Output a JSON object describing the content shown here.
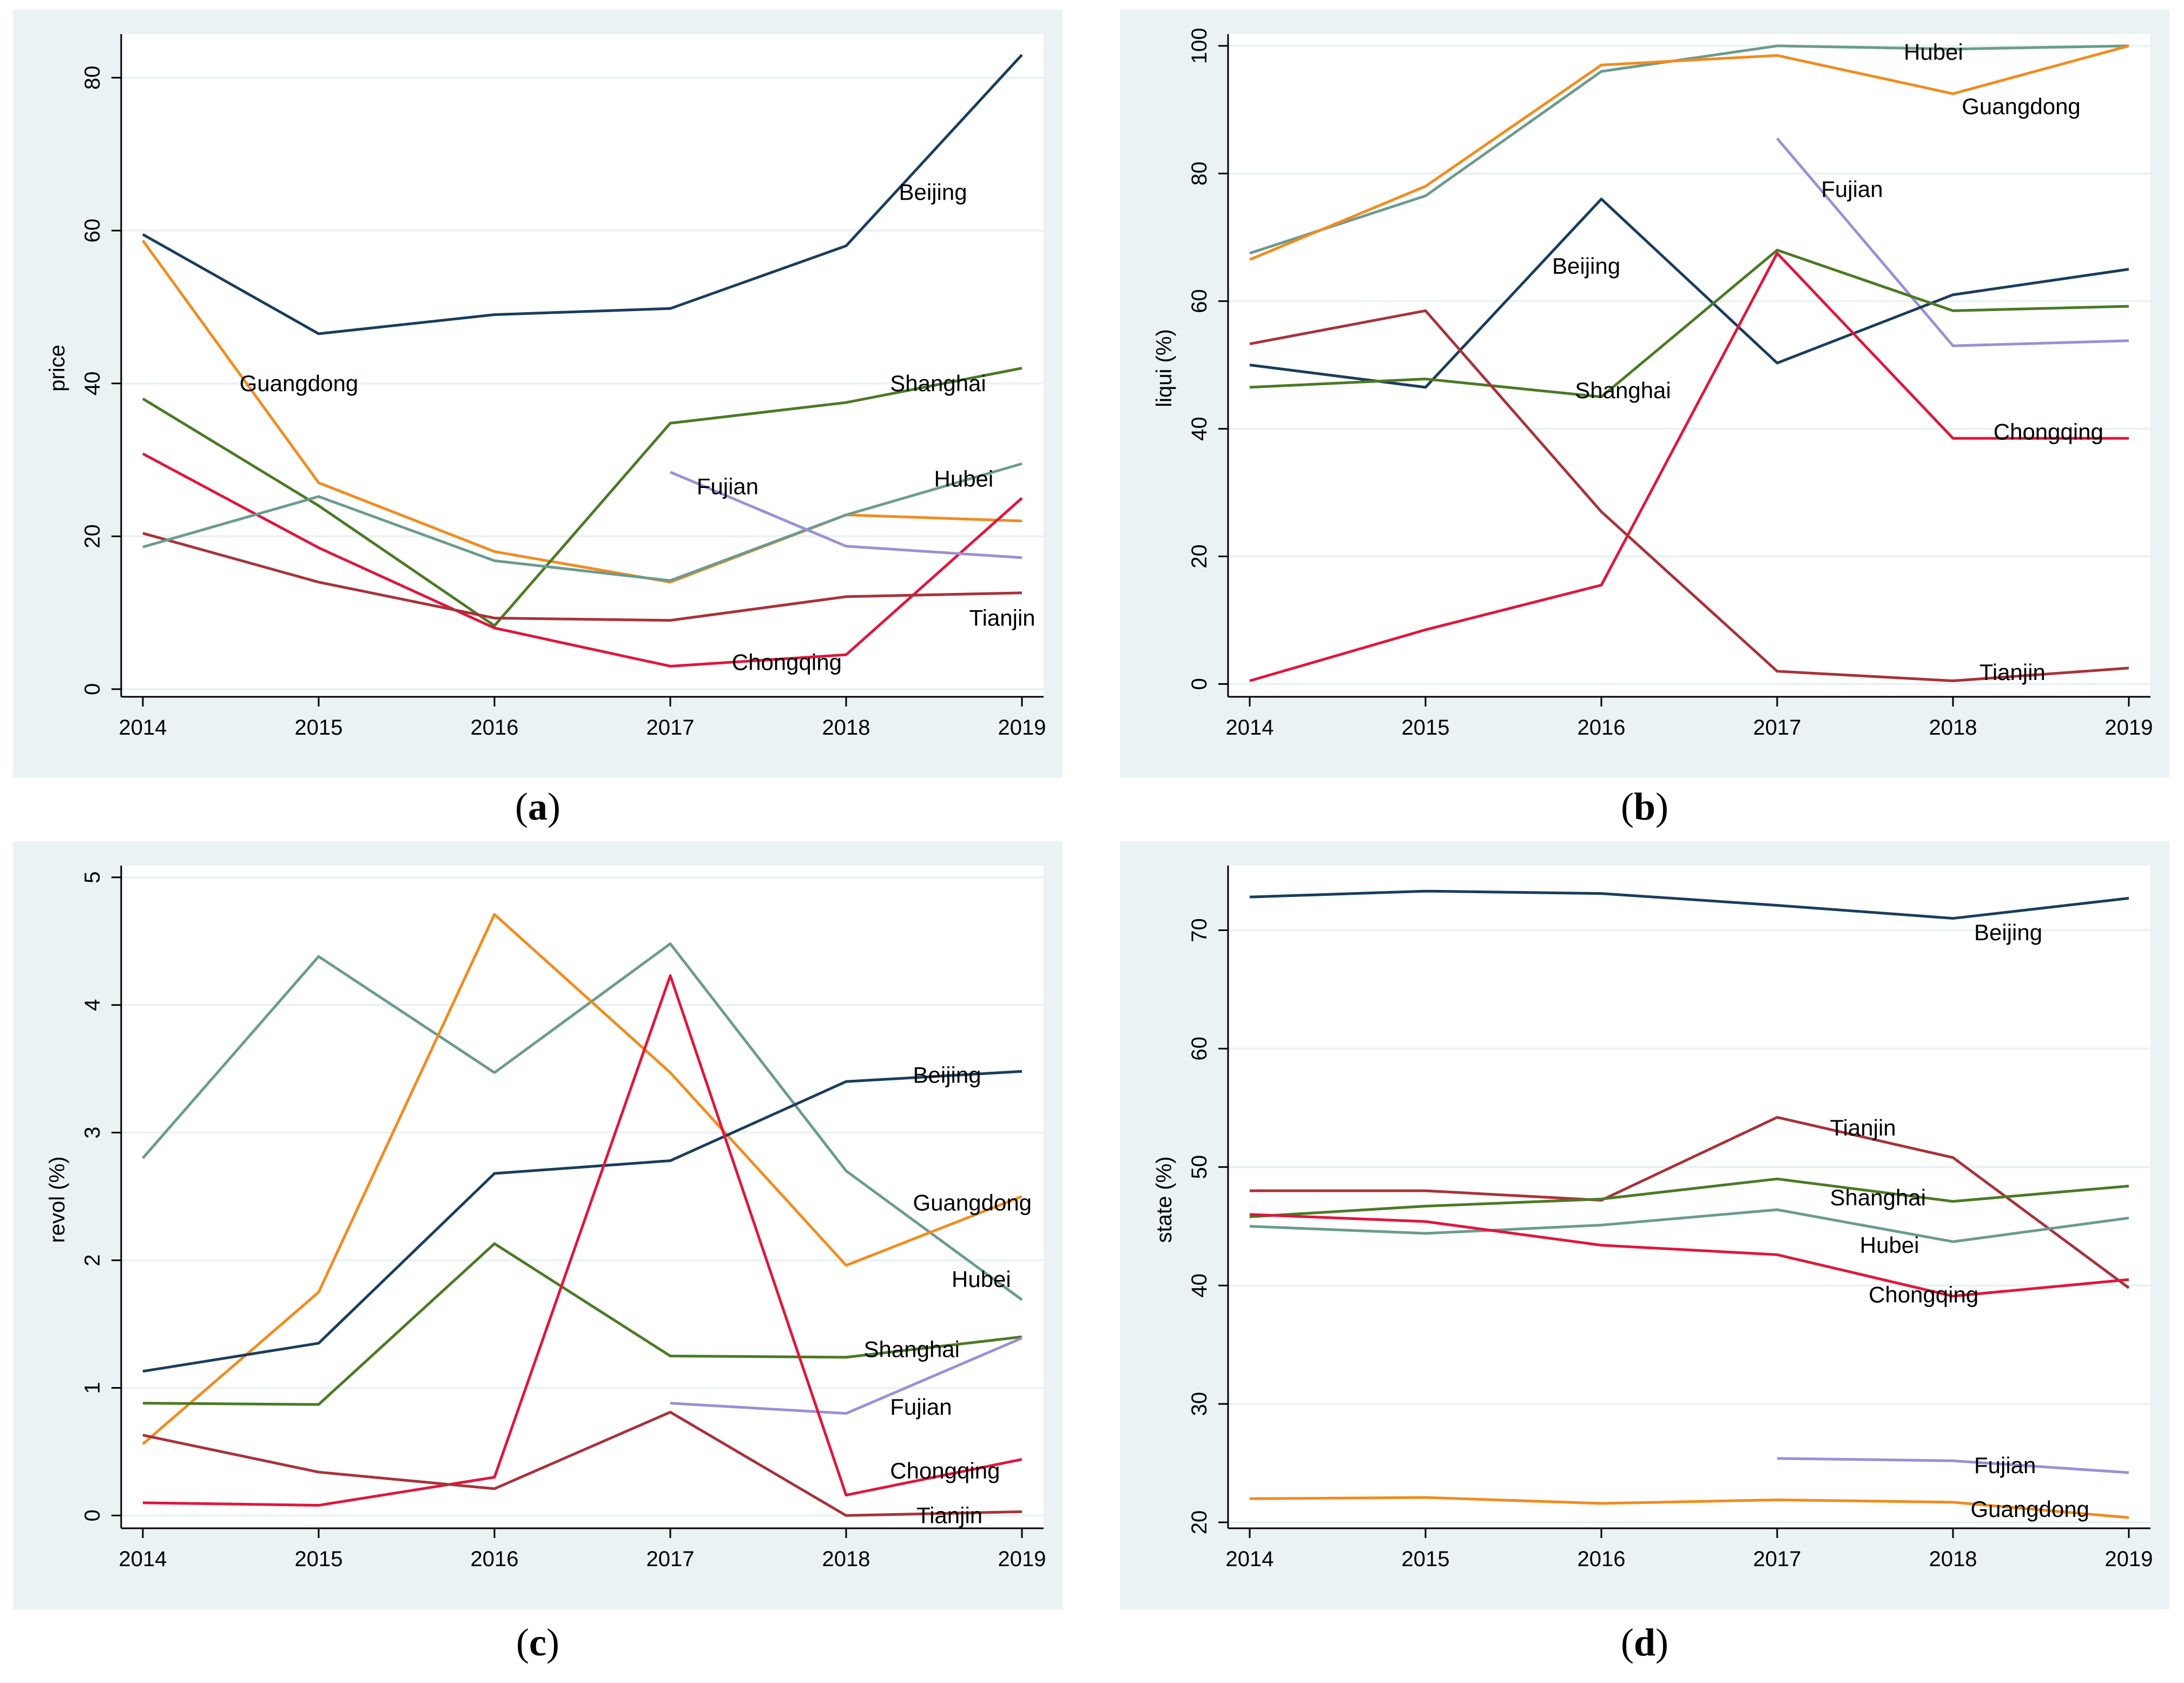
{
  "chart_data": [
    {
      "id": "a",
      "type": "line",
      "caption_letter": "a",
      "ylabel": "price",
      "xlabel": "",
      "x": [
        2014,
        2015,
        2016,
        2017,
        2018,
        2019
      ],
      "ylim": [
        -1,
        85
      ],
      "yticks": [
        0,
        20,
        40,
        60,
        80
      ],
      "grid": true,
      "series": [
        {
          "name": "Beijing",
          "color": "#1a3d5c",
          "values": [
            59.5,
            46.5,
            49,
            49.8,
            58,
            83
          ]
        },
        {
          "name": "Guangdong",
          "color": "#f28b1e",
          "values": [
            58.7,
            27,
            18,
            14,
            22.8,
            22
          ]
        },
        {
          "name": "Shanghai",
          "color": "#4b7a25",
          "values": [
            38,
            24,
            8.3,
            34.8,
            37.5,
            42
          ]
        },
        {
          "name": "Chongqing",
          "color": "#e0163c",
          "values": [
            30.8,
            18.5,
            8,
            3,
            4.5,
            25
          ]
        },
        {
          "name": "Tianjin",
          "color": "#a8323a",
          "values": [
            20.4,
            14,
            9.3,
            9,
            12.1,
            12.6
          ]
        },
        {
          "name": "Hubei",
          "color": "#6b9b8f",
          "values": [
            18.6,
            25.2,
            16.8,
            14.2,
            22.8,
            29.5
          ]
        },
        {
          "name": "Fujian",
          "color": "#9c8fd6",
          "values": [
            null,
            null,
            null,
            28.4,
            18.7,
            17.2
          ]
        }
      ],
      "labels": [
        {
          "text": "Beijing",
          "x": 2018.3,
          "y": 65
        },
        {
          "text": "Guangdong",
          "x": 2014.55,
          "y": 40
        },
        {
          "text": "Shanghai",
          "x": 2018.25,
          "y": 40
        },
        {
          "text": "Fujian",
          "x": 2017.15,
          "y": 26.5
        },
        {
          "text": "Hubei",
          "x": 2018.5,
          "y": 27.5
        },
        {
          "text": "Tianjin",
          "x": 2018.7,
          "y": 9.3
        },
        {
          "text": "Chongqing",
          "x": 2017.35,
          "y": 3.5
        }
      ]
    },
    {
      "id": "b",
      "type": "line",
      "caption_letter": "b",
      "ylabel": "liqui (%)",
      "xlabel": "",
      "x": [
        2014,
        2015,
        2016,
        2017,
        2018,
        2019
      ],
      "ylim": [
        -2,
        101
      ],
      "yticks": [
        0,
        20,
        40,
        60,
        80,
        100
      ],
      "grid": true,
      "series": [
        {
          "name": "Hubei",
          "color": "#6b9b8f",
          "values": [
            67.5,
            76.5,
            96,
            100,
            99.5,
            100
          ]
        },
        {
          "name": "Guangdong",
          "color": "#f28b1e",
          "values": [
            66.5,
            78,
            97,
            98.5,
            92.5,
            100
          ]
        },
        {
          "name": "Fujian",
          "color": "#9c8fd6",
          "values": [
            null,
            null,
            null,
            85.5,
            53,
            53.8
          ]
        },
        {
          "name": "Beijing",
          "color": "#1a3d5c",
          "values": [
            50,
            46.5,
            76,
            50.3,
            61,
            65
          ]
        },
        {
          "name": "Shanghai",
          "color": "#4b7a25",
          "values": [
            46.5,
            47.8,
            45,
            68,
            58.5,
            59.2
          ]
        },
        {
          "name": "Chongqing",
          "color": "#e0163c",
          "values": [
            0.5,
            8.5,
            15.5,
            67.5,
            38.5,
            38.5
          ]
        },
        {
          "name": "Tianjin",
          "color": "#a8323a",
          "values": [
            53.3,
            58.5,
            27,
            2,
            0.5,
            2.5
          ]
        }
      ],
      "labels": [
        {
          "text": "Hubei",
          "x": 2017.72,
          "y": 99
        },
        {
          "text": "Guangdong",
          "x": 2018.05,
          "y": 90.5
        },
        {
          "text": "Fujian",
          "x": 2017.25,
          "y": 77.5
        },
        {
          "text": "Beijing",
          "x": 2015.72,
          "y": 65.5
        },
        {
          "text": "Shanghai",
          "x": 2015.85,
          "y": 46
        },
        {
          "text": "Chongqing",
          "x": 2018.23,
          "y": 39.5
        },
        {
          "text": "Tianjin",
          "x": 2018.15,
          "y": 1.8
        }
      ]
    },
    {
      "id": "c",
      "type": "line",
      "caption_letter": "c",
      "ylabel": "revol (%)",
      "xlabel": "",
      "x": [
        2014,
        2015,
        2016,
        2017,
        2018,
        2019
      ],
      "ylim": [
        -0.1,
        5.05
      ],
      "yticks": [
        0,
        1,
        2,
        3,
        4,
        5
      ],
      "grid": true,
      "series": [
        {
          "name": "Hubei",
          "color": "#6b9b8f",
          "values": [
            2.8,
            4.38,
            3.47,
            4.48,
            2.7,
            1.69
          ]
        },
        {
          "name": "Guangdong",
          "color": "#f28b1e",
          "values": [
            0.56,
            1.75,
            4.71,
            3.47,
            1.96,
            2.5
          ]
        },
        {
          "name": "Beijing",
          "color": "#1a3d5c",
          "values": [
            1.13,
            1.35,
            2.68,
            2.78,
            3.4,
            3.48
          ]
        },
        {
          "name": "Shanghai",
          "color": "#4b7a25",
          "values": [
            0.88,
            0.87,
            2.13,
            1.25,
            1.24,
            1.4
          ]
        },
        {
          "name": "Fujian",
          "color": "#9c8fd6",
          "values": [
            null,
            null,
            null,
            0.88,
            0.8,
            1.39
          ]
        },
        {
          "name": "Chongqing",
          "color": "#e0163c",
          "values": [
            0.1,
            0.08,
            0.3,
            4.23,
            0.16,
            0.44
          ]
        },
        {
          "name": "Tianjin",
          "color": "#a8323a",
          "values": [
            0.63,
            0.34,
            0.21,
            0.81,
            0,
            0.03
          ]
        }
      ],
      "labels": [
        {
          "text": "Beijing",
          "x": 2018.38,
          "y": 3.45
        },
        {
          "text": "Guangdong",
          "x": 2018.38,
          "y": 2.45
        },
        {
          "text": "Hubei",
          "x": 2018.6,
          "y": 1.85
        },
        {
          "text": "Shanghai",
          "x": 2018.1,
          "y": 1.3
        },
        {
          "text": "Fujian",
          "x": 2018.25,
          "y": 0.85
        },
        {
          "text": "Chongqing",
          "x": 2018.25,
          "y": 0.35
        },
        {
          "text": "Tianjin",
          "x": 2018.4,
          "y": 0.0
        }
      ]
    },
    {
      "id": "d",
      "type": "line",
      "caption_letter": "d",
      "ylabel": "state (%)",
      "xlabel": "",
      "x": [
        2014,
        2015,
        2016,
        2017,
        2018,
        2019
      ],
      "ylim": [
        19.5,
        75
      ],
      "yticks": [
        20,
        30,
        40,
        50,
        60,
        70
      ],
      "grid": true,
      "series": [
        {
          "name": "Beijing",
          "color": "#1a3d5c",
          "values": [
            72.8,
            73.3,
            73.1,
            72.1,
            71,
            72.7
          ]
        },
        {
          "name": "Tianjin",
          "color": "#a8323a",
          "values": [
            48,
            48,
            47.2,
            54.2,
            50.8,
            39.8
          ]
        },
        {
          "name": "Shanghai",
          "color": "#4b7a25",
          "values": [
            45.8,
            46.7,
            47.3,
            49,
            47.1,
            48.4
          ]
        },
        {
          "name": "Hubei",
          "color": "#6b9b8f",
          "values": [
            45,
            44.4,
            45.1,
            46.4,
            43.7,
            45.7
          ]
        },
        {
          "name": "Chongqing",
          "color": "#e0163c",
          "values": [
            46,
            45.4,
            43.4,
            42.6,
            39.1,
            40.5
          ]
        },
        {
          "name": "Fujian",
          "color": "#9c8fd6",
          "values": [
            null,
            null,
            null,
            25.4,
            25.2,
            24.2
          ]
        },
        {
          "name": "Guangdong",
          "color": "#f28b1e",
          "values": [
            22,
            22.1,
            21.6,
            21.9,
            21.7,
            20.4
          ]
        }
      ],
      "labels": [
        {
          "text": "Beijing",
          "x": 2018.12,
          "y": 69.8
        },
        {
          "text": "Tianjin",
          "x": 2017.3,
          "y": 53.3
        },
        {
          "text": "Shanghai",
          "x": 2017.3,
          "y": 47.4
        },
        {
          "text": "Hubei",
          "x": 2017.47,
          "y": 43.4
        },
        {
          "text": "Chongqing",
          "x": 2017.52,
          "y": 39.2
        },
        {
          "text": "Fujian",
          "x": 2018.12,
          "y": 24.8
        },
        {
          "text": "Guangdong",
          "x": 2018.1,
          "y": 21.1
        }
      ]
    }
  ]
}
